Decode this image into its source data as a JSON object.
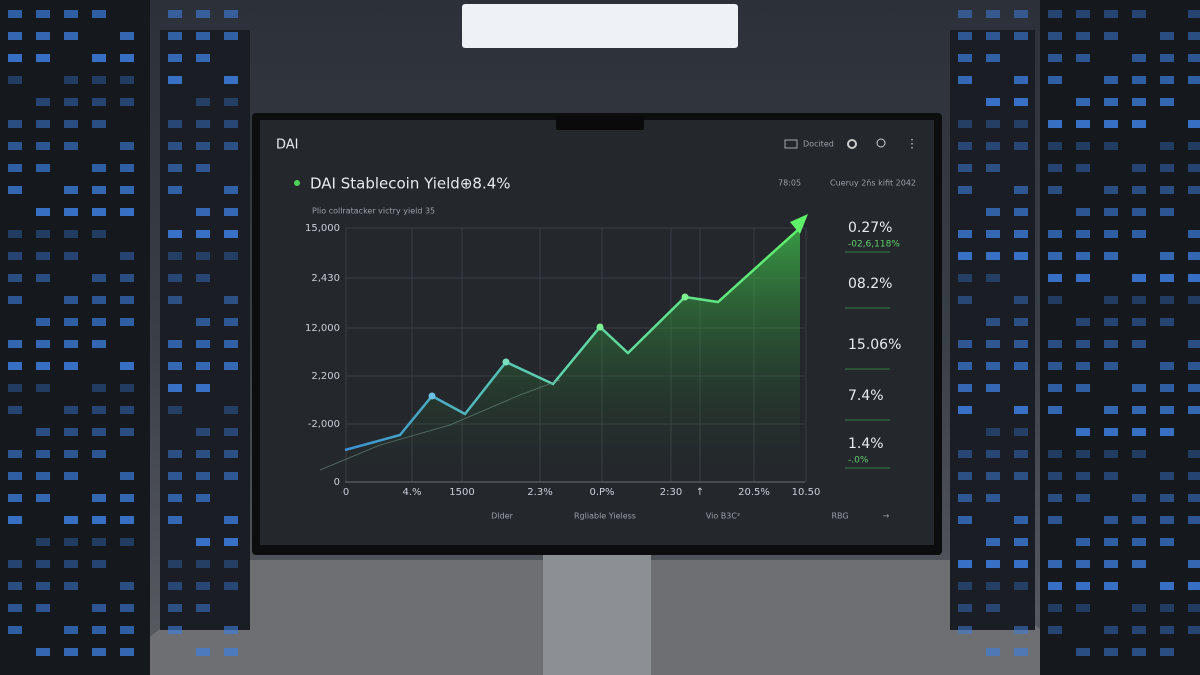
{
  "header": {
    "logo": "DAI",
    "menu_label": "Docited"
  },
  "panel": {
    "title": "DAI Stablecoin Yield⊕8.4%",
    "time": "78:05",
    "info": "Cueruy 2ňs kifit 2042",
    "subtitle": "Plio collratacker victry yield 35",
    "y_labels": [
      "15,000",
      "2,430",
      "12,000",
      "2,200",
      "-2,000",
      "0"
    ],
    "x_labels": [
      "0",
      "4.%",
      "1500",
      "2.3%",
      "0.P%",
      "2:30",
      "↑",
      "20.5%",
      "10.50"
    ],
    "footer": [
      "Dlder",
      "Rgliable Yieless",
      "Vio B3C²",
      "RBG",
      "→"
    ]
  },
  "stats": [
    {
      "value": "0.27%",
      "sub": "-02,6,118%"
    },
    {
      "value": "08.2%"
    },
    {
      "value": "15.06%"
    },
    {
      "value": "7.4%"
    },
    {
      "value": "1.4%",
      "sub": "-.0%"
    }
  ]
}
